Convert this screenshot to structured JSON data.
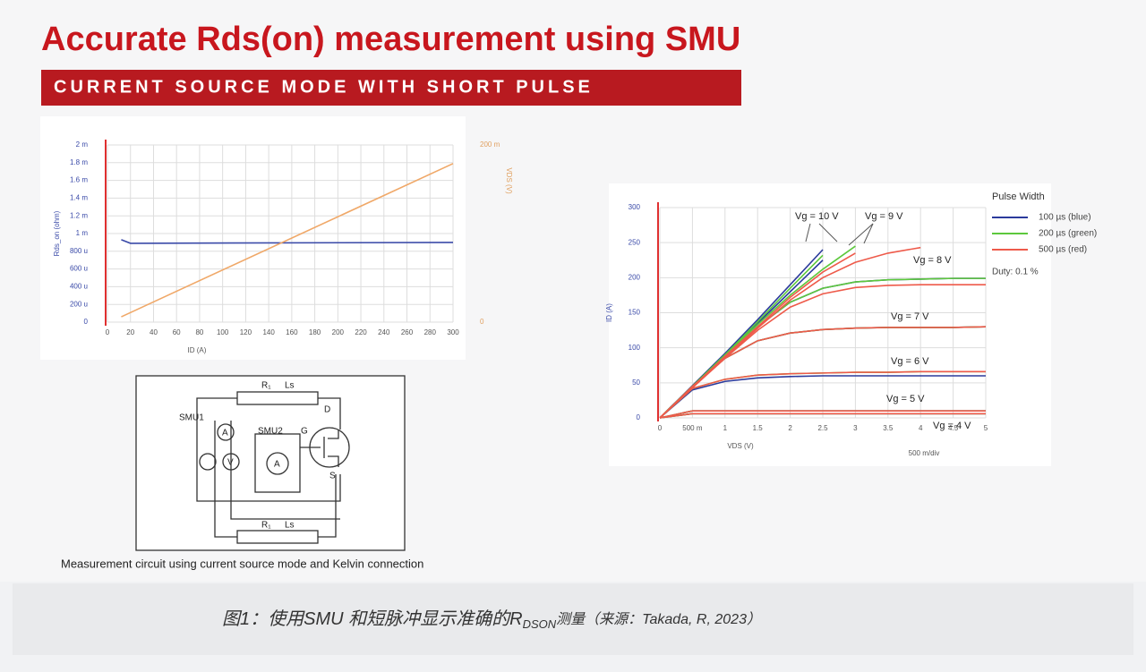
{
  "header": {
    "title": "Accurate Rds(on) measurement using SMU",
    "banner": "CURRENT SOURCE MODE WITH SHORT PULSE"
  },
  "chart_data": [
    {
      "type": "line",
      "y_label": "Rds_on (ohm)",
      "x_label": "ID (A)",
      "y2_label": "VDS (V)",
      "x": [
        12,
        20,
        300
      ],
      "series": [
        {
          "name": "Rds(on)",
          "color": "#3a4aa8",
          "values": [
            0.00093,
            0.00089,
            0.0009
          ]
        },
        {
          "name": "VDS",
          "color": "#f0a868",
          "axis": "y2",
          "values": [
            0.006,
            0.0108,
            0.179
          ]
        }
      ],
      "xlim": [
        0,
        300
      ],
      "xticks": [
        0,
        20,
        40,
        60,
        80,
        100,
        120,
        140,
        160,
        180,
        200,
        220,
        240,
        260,
        280,
        300
      ],
      "ylim": [
        0,
        0.002
      ],
      "yticks": [
        0,
        {
          "value": 0.0002,
          "label": "200 u"
        },
        {
          "value": 0.0004,
          "label": "400 u"
        },
        {
          "value": 0.0006,
          "label": "600 u"
        },
        {
          "value": 0.0008,
          "label": "800 u"
        },
        {
          "value": 0.001,
          "label": "1 m"
        },
        {
          "value": 0.0012,
          "label": "1.2 m"
        },
        {
          "value": 0.0014,
          "label": "1.4 m"
        },
        {
          "value": 0.0016,
          "label": "1.6 m"
        },
        {
          "value": 0.0018,
          "label": "1.8 m"
        },
        {
          "value": 0.002,
          "label": "2 m"
        }
      ],
      "y2lim": [
        0,
        0.2
      ],
      "y2ticks": [
        0,
        {
          "value": 0.2,
          "label": "200 m"
        }
      ],
      "grid": true
    },
    {
      "type": "curves",
      "y_label": "ID (A)",
      "x_label": "VDS (V)",
      "x_note": "500 m/div",
      "legend_title": "Pulse Width",
      "legend_note": "Duty: 0.1 %",
      "annotations": [
        "Vg = 10 V",
        "Vg = 9 V",
        "Vg = 8 V",
        "Vg = 7 V",
        "Vg = 6 V",
        "Vg = 5 V",
        "Vg = 4 V"
      ],
      "x": [
        0,
        0.5,
        1,
        1.5,
        2,
        2.5,
        3,
        3.5,
        4,
        4.5,
        5
      ],
      "series": [
        {
          "name": "100 µs (blue)",
          "color": "#2b3a9c",
          "curves": [
            [
              0,
              46,
              92,
              140,
              190,
              240,
              null,
              null,
              null,
              null,
              null
            ],
            [
              0,
              45,
              90,
              135,
              180,
              225,
              null,
              null,
              null,
              null,
              null
            ],
            [
              0,
              45,
              88,
              130,
              165,
              185,
              194,
              197,
              198,
              199,
              199
            ],
            [
              0,
              45,
              85,
              110,
              121,
              126,
              128,
              129,
              129,
              129,
              130
            ],
            [
              0,
              40,
              52,
              57,
              59,
              60,
              60,
              60,
              60,
              60,
              60
            ],
            [
              0,
              10,
              10,
              10,
              10,
              10,
              10,
              10,
              10,
              10,
              10
            ],
            [
              0,
              6,
              6,
              6,
              6,
              6,
              6,
              6,
              6,
              6,
              6
            ]
          ]
        },
        {
          "name": "200 µs (green)",
          "color": "#5cc83c",
          "curves": [
            [
              0,
              45,
              90,
              137,
              185,
              232,
              null,
              null,
              null,
              null,
              null
            ],
            [
              0,
              45,
              90,
              133,
              175,
              212,
              245,
              null,
              null,
              null,
              null
            ],
            [
              0,
              45,
              88,
              130,
              165,
              185,
              194,
              197,
              198,
              199,
              199
            ],
            [
              0,
              45,
              85,
              110,
              121,
              126,
              128,
              129,
              129,
              129,
              130
            ],
            [
              0,
              42,
              55,
              61,
              63,
              64,
              65,
              65,
              66,
              66,
              66
            ],
            [
              0,
              10,
              10,
              10,
              10,
              10,
              10,
              10,
              10,
              10,
              10
            ],
            [
              0,
              6,
              6,
              6,
              6,
              6,
              6,
              6,
              6,
              6,
              6
            ]
          ]
        },
        {
          "name": "500 µs (red)",
          "color": "#ee5a4a",
          "curves": [
            [
              0,
              44,
              88,
              130,
              172,
              208,
              235,
              null,
              null,
              null,
              null
            ],
            [
              0,
              43,
              86,
              128,
              168,
              200,
              222,
              235,
              243,
              null,
              null
            ],
            [
              0,
              43,
              85,
              125,
              158,
              177,
              186,
              189,
              190,
              190,
              190
            ],
            [
              0,
              45,
              85,
              110,
              121,
              126,
              128,
              129,
              129,
              129,
              130
            ],
            [
              0,
              42,
              55,
              61,
              63,
              64,
              65,
              65,
              66,
              66,
              66
            ],
            [
              0,
              10,
              10,
              10,
              10,
              10,
              10,
              10,
              10,
              10,
              10
            ],
            [
              0,
              6,
              6,
              6,
              6,
              6,
              6,
              6,
              6,
              6,
              6
            ]
          ]
        }
      ],
      "xlim": [
        0,
        5
      ],
      "xticks": [
        0,
        {
          "value": 0.5,
          "label": "500 m"
        },
        1,
        1.5,
        2,
        2.5,
        3,
        3.5,
        4,
        4.5,
        5
      ],
      "ylim": [
        0,
        300
      ],
      "yticks": [
        0,
        50,
        100,
        150,
        200,
        250,
        300
      ],
      "grid": true
    }
  ],
  "diagram": {
    "labels": [
      "R₁",
      "Ls",
      "SMU1",
      "SMU2",
      "D",
      "G",
      "S",
      "A",
      "V",
      "A",
      "R₁",
      "Ls"
    ],
    "caption": "Measurement circuit using current source mode and Kelvin connection"
  },
  "footer": {
    "caption": "图1：使用SMU 和短脉冲显示准确的R",
    "subscript": "DSON",
    "caption_end": "测量（来源：Takada, R, 2023）"
  }
}
